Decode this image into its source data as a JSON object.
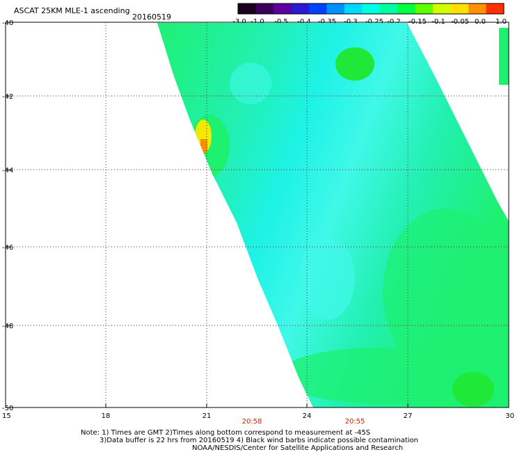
{
  "header": {
    "title": "ASCAT 25KM MLE-1 ascending",
    "date": "20160519"
  },
  "colorbar": {
    "labels": [
      "-3.0",
      "-1.0",
      "-0.5",
      "-0.4",
      "-0.35",
      "-0.3",
      "-0.25",
      "-0.2",
      "-0.15",
      "-0.1",
      "-0.05",
      "0.0",
      "1.0"
    ],
    "colors": [
      "#1a0020",
      "#3a005a",
      "#5c00a0",
      "#2a1ad0",
      "#0040ff",
      "#0090ff",
      "#00d8ff",
      "#00ffe0",
      "#00ffa0",
      "#00ff40",
      "#60ff00",
      "#d0ff00",
      "#ffe000",
      "#ff9000",
      "#ff3000"
    ]
  },
  "map": {
    "y_ticks": [
      "-40",
      "-42",
      "-44",
      "-46",
      "-48",
      "-50"
    ],
    "x_ticks": [
      "15",
      "18",
      "21",
      "24",
      "27",
      "30"
    ],
    "time_labels": [
      "20:58",
      "20:55"
    ],
    "time_color": "#cc2200",
    "swath_colors": {
      "cyan": "#1ef2e6",
      "light_cyan": "#40f8e8",
      "aqua_green": "#22f0b0",
      "green": "#1ef070",
      "bright_green": "#20e838",
      "yellow": "#f2e800",
      "orange": "#f49000"
    }
  },
  "footer": {
    "line1": "Note: 1) Times are GMT 2)Times along bottom correspond to measurement at -45S",
    "line2": "3)Data buffer is 22 hrs from 20160519 4) Black wind barbs indicate possible contamination",
    "line3": "NOAA/NESDIS/Center for Satellite Applications and Research"
  }
}
